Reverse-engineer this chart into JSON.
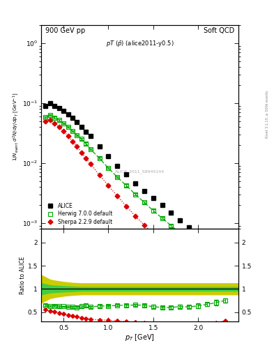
{
  "title_left": "900 GeV pp",
  "title_right": "Soft QCD",
  "watermark": "ALICE_2011_S8945144",
  "right_label": "Rivet 3.1.10, ≥ 500k events",
  "xlim": [
    0.25,
    2.45
  ],
  "ylim_main": [
    0.0008,
    2.0
  ],
  "ylim_ratio": [
    0.3,
    2.3
  ],
  "alice_pt": [
    0.3,
    0.35,
    0.4,
    0.45,
    0.5,
    0.55,
    0.6,
    0.65,
    0.7,
    0.75,
    0.8,
    0.9,
    1.0,
    1.1,
    1.2,
    1.3,
    1.4,
    1.5,
    1.6,
    1.7,
    1.8,
    1.9,
    2.0,
    2.1,
    2.2,
    2.3
  ],
  "alice_y": [
    0.09,
    0.1,
    0.09,
    0.083,
    0.074,
    0.065,
    0.056,
    0.048,
    0.04,
    0.033,
    0.028,
    0.019,
    0.013,
    0.009,
    0.0065,
    0.0046,
    0.0034,
    0.0026,
    0.002,
    0.0015,
    0.0011,
    0.00085,
    0.00063,
    0.00048,
    0.00037,
    0.00024
  ],
  "alice_yerr": [
    0.005,
    0.005,
    0.004,
    0.004,
    0.003,
    0.003,
    0.002,
    0.002,
    0.002,
    0.001,
    0.001,
    0.001,
    0.0005,
    0.0004,
    0.0003,
    0.0002,
    0.0002,
    0.0001,
    0.0001,
    0.0001,
    5e-05,
    4e-05,
    3e-05,
    2e-05,
    2e-05,
    1e-05
  ],
  "herwig_pt": [
    0.3,
    0.35,
    0.4,
    0.45,
    0.5,
    0.55,
    0.6,
    0.65,
    0.7,
    0.75,
    0.8,
    0.9,
    1.0,
    1.1,
    1.2,
    1.3,
    1.4,
    1.5,
    1.6,
    1.7,
    1.8,
    1.9,
    2.0,
    2.1,
    2.2,
    2.3
  ],
  "herwig_y": [
    0.058,
    0.063,
    0.057,
    0.052,
    0.046,
    0.04,
    0.034,
    0.029,
    0.025,
    0.021,
    0.017,
    0.012,
    0.0082,
    0.0058,
    0.0042,
    0.003,
    0.0022,
    0.0016,
    0.0012,
    0.0009,
    0.00068,
    0.00052,
    0.0004,
    0.00032,
    0.00026,
    0.00018
  ],
  "herwig_yerr": [
    0.002,
    0.002,
    0.002,
    0.002,
    0.001,
    0.001,
    0.001,
    0.001,
    0.001,
    0.001,
    0.0005,
    0.0005,
    0.0003,
    0.0002,
    0.0002,
    0.0001,
    0.0001,
    0.0001,
    5e-05,
    5e-05,
    4e-05,
    3e-05,
    3e-05,
    2e-05,
    2e-05,
    1e-05
  ],
  "sherpa_pt": [
    0.3,
    0.35,
    0.4,
    0.45,
    0.5,
    0.55,
    0.6,
    0.65,
    0.7,
    0.75,
    0.8,
    0.9,
    1.0,
    1.1,
    1.2,
    1.3,
    1.4,
    1.5,
    1.6,
    1.7,
    1.8,
    1.9,
    2.0,
    2.1,
    2.2,
    2.3
  ],
  "sherpa_y": [
    0.05,
    0.052,
    0.046,
    0.04,
    0.034,
    0.028,
    0.023,
    0.019,
    0.015,
    0.012,
    0.0096,
    0.0063,
    0.0042,
    0.0028,
    0.0019,
    0.0013,
    0.00092,
    0.00064,
    0.00045,
    0.00033,
    0.00025,
    0.00019,
    0.00015,
    0.00012,
    0.0001,
    7.5e-05
  ],
  "sherpa_yerr": [
    0.002,
    0.002,
    0.001,
    0.001,
    0.001,
    0.001,
    0.001,
    0.001,
    0.0005,
    0.0005,
    0.0003,
    0.0002,
    0.0002,
    0.0001,
    0.0001,
    5e-05,
    4e-05,
    3e-05,
    2e-05,
    2e-05,
    1e-05,
    1e-05,
    1e-05,
    1e-05,
    1e-05,
    5e-06
  ],
  "alice_color": "#000000",
  "herwig_color": "#00aa00",
  "sherpa_color": "#dd0000",
  "band_inner_color": "#44cc44",
  "band_outer_color": "#cccc00",
  "ratio_band_pt": [
    0.25,
    0.3,
    0.35,
    0.4,
    0.5,
    0.6,
    0.7,
    0.8,
    0.9,
    1.0,
    1.2,
    1.4,
    1.6,
    1.8,
    2.0,
    2.2,
    2.45
  ],
  "ratio_inner_lo": [
    0.88,
    0.9,
    0.92,
    0.93,
    0.94,
    0.95,
    0.96,
    0.96,
    0.96,
    0.96,
    0.96,
    0.96,
    0.96,
    0.96,
    0.96,
    0.96,
    0.96
  ],
  "ratio_inner_hi": [
    1.12,
    1.1,
    1.08,
    1.07,
    1.06,
    1.05,
    1.04,
    1.04,
    1.04,
    1.04,
    1.04,
    1.04,
    1.04,
    1.04,
    1.04,
    1.04,
    1.04
  ],
  "ratio_outer_lo": [
    0.7,
    0.75,
    0.8,
    0.82,
    0.85,
    0.87,
    0.88,
    0.88,
    0.88,
    0.88,
    0.88,
    0.88,
    0.88,
    0.88,
    0.88,
    0.88,
    0.88
  ],
  "ratio_outer_hi": [
    1.3,
    1.25,
    1.2,
    1.18,
    1.15,
    1.13,
    1.12,
    1.12,
    1.12,
    1.12,
    1.12,
    1.12,
    1.12,
    1.12,
    1.12,
    1.12,
    1.12
  ]
}
